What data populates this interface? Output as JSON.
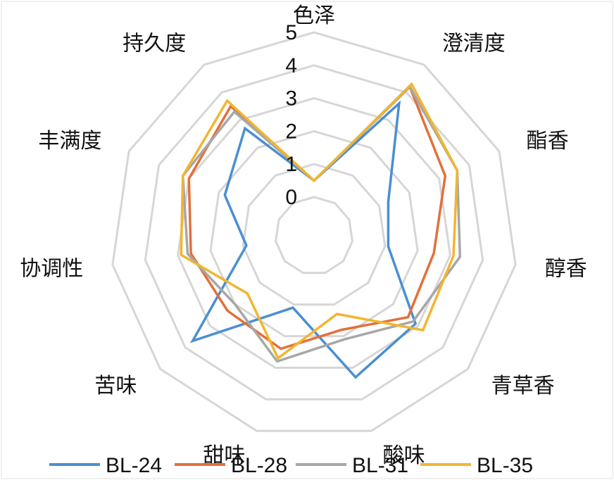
{
  "chart_data": {
    "type": "radar",
    "categories": [
      "色泽",
      "澄清度",
      "酯香",
      "醇香",
      "青草香",
      "酸味",
      "甜味",
      "苦味",
      "协调性",
      "丰满度",
      "持久度"
    ],
    "ticks": [
      "0",
      "1",
      "2",
      "3",
      "4",
      "5"
    ],
    "rmin": 0,
    "rmax": 5,
    "grid": true,
    "legend_position": "bottom",
    "series": [
      {
        "name": "BL-24",
        "color": "#4a8fd1",
        "values": [
          0.5,
          3.6,
          1.3,
          1.1,
          2.9,
          3.3,
          1.1,
          3.7,
          0.9,
          1.8,
          2.7
        ]
      },
      {
        "name": "BL-28",
        "color": "#e2703a",
        "values": [
          0.5,
          4.2,
          3.2,
          2.5,
          2.6,
          1.8,
          2.4,
          2.3,
          2.6,
          3.0,
          3.5
        ]
      },
      {
        "name": "BL-31",
        "color": "#a7a7a7",
        "values": [
          0.5,
          4.2,
          3.6,
          3.3,
          2.8,
          2.1,
          2.8,
          2.0,
          2.7,
          3.2,
          3.3
        ]
      },
      {
        "name": "BL-35",
        "color": "#f2b530",
        "values": [
          0.5,
          4.3,
          3.6,
          3.1,
          3.2,
          1.3,
          2.7,
          1.5,
          2.9,
          3.2,
          3.7
        ]
      }
    ]
  }
}
